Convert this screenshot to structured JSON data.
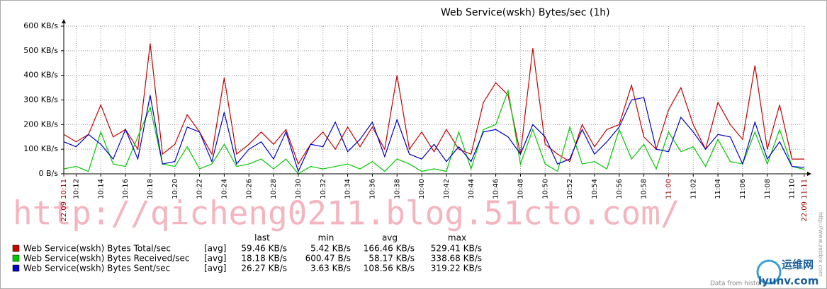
{
  "chart_data": {
    "type": "line",
    "title": "Web Service(wskh) Bytes/sec (1h)",
    "x": [
      611,
      612,
      613,
      614,
      615,
      616,
      617,
      618,
      619,
      620,
      621,
      622,
      623,
      624,
      625,
      626,
      627,
      628,
      629,
      630,
      631,
      632,
      633,
      634,
      635,
      636,
      637,
      638,
      639,
      640,
      641,
      642,
      643,
      644,
      645,
      646,
      647,
      648,
      649,
      650,
      651,
      652,
      653,
      654,
      655,
      656,
      657,
      658,
      659,
      660,
      661,
      662,
      663,
      664,
      665,
      666,
      667,
      668,
      669,
      670,
      671
    ],
    "xlim": [
      611,
      671
    ],
    "xticks": [
      {
        "value": 611,
        "label": "22.09 10:11",
        "color": "#a00000"
      },
      {
        "value": 612,
        "label": "10:12"
      },
      {
        "value": 614,
        "label": "10:14"
      },
      {
        "value": 616,
        "label": "10:16"
      },
      {
        "value": 618,
        "label": "10:18"
      },
      {
        "value": 620,
        "label": "10:20"
      },
      {
        "value": 622,
        "label": "10:22"
      },
      {
        "value": 624,
        "label": "10:24"
      },
      {
        "value": 626,
        "label": "10:26"
      },
      {
        "value": 628,
        "label": "10:28"
      },
      {
        "value": 630,
        "label": "10:30"
      },
      {
        "value": 632,
        "label": "10:32"
      },
      {
        "value": 634,
        "label": "10:34"
      },
      {
        "value": 636,
        "label": "10:36"
      },
      {
        "value": 638,
        "label": "10:38"
      },
      {
        "value": 640,
        "label": "10:40"
      },
      {
        "value": 642,
        "label": "10:42"
      },
      {
        "value": 644,
        "label": "10:44"
      },
      {
        "value": 646,
        "label": "10:46"
      },
      {
        "value": 648,
        "label": "10:48"
      },
      {
        "value": 650,
        "label": "10:50"
      },
      {
        "value": 652,
        "label": "10:52"
      },
      {
        "value": 654,
        "label": "10:54"
      },
      {
        "value": 656,
        "label": "10:56"
      },
      {
        "value": 658,
        "label": "10:58"
      },
      {
        "value": 660,
        "label": "11:00",
        "color": "#a00000"
      },
      {
        "value": 662,
        "label": "11:02"
      },
      {
        "value": 664,
        "label": "11:04"
      },
      {
        "value": 666,
        "label": "11:06"
      },
      {
        "value": 668,
        "label": "11:08"
      },
      {
        "value": 670,
        "label": "11:10"
      },
      {
        "value": 671,
        "label": "22.09 11:11",
        "color": "#a00000"
      }
    ],
    "ylim": [
      0,
      600
    ],
    "yticks": [
      {
        "value": 0,
        "label": "0 B/s"
      },
      {
        "value": 100,
        "label": "100 KB/s"
      },
      {
        "value": 200,
        "label": "200 KB/s"
      },
      {
        "value": 300,
        "label": "300 KB/s"
      },
      {
        "value": 400,
        "label": "400 KB/s"
      },
      {
        "value": 500,
        "label": "500 KB/s"
      },
      {
        "value": 600,
        "label": "600 KB/s"
      }
    ],
    "grid": true,
    "stat_columns": [
      "last",
      "min",
      "avg",
      "max"
    ],
    "series": [
      {
        "name": "Web Service(wskh) Bytes Total/sec",
        "color": "#c80000",
        "values": [
          160,
          130,
          160,
          280,
          150,
          180,
          100,
          529,
          80,
          120,
          240,
          170,
          80,
          390,
          80,
          120,
          170,
          120,
          180,
          40,
          120,
          170,
          100,
          190,
          110,
          190,
          100,
          400,
          100,
          170,
          90,
          180,
          100,
          80,
          290,
          370,
          320,
          80,
          510,
          120,
          80,
          50,
          200,
          110,
          180,
          200,
          360,
          150,
          100,
          260,
          350,
          200,
          100,
          290,
          200,
          140,
          440,
          100,
          280,
          60,
          60
        ],
        "stats": {
          "func": "[avg]",
          "last": "59.46 KB/s",
          "min": "5.42 KB/s",
          "avg": "166.46 KB/s",
          "max": "529.41 KB/s"
        }
      },
      {
        "name": "Web Service(wskh) Bytes Received/sec",
        "color": "#00c800",
        "values": [
          20,
          30,
          10,
          170,
          40,
          30,
          150,
          270,
          40,
          30,
          110,
          20,
          40,
          120,
          30,
          40,
          60,
          20,
          60,
          0,
          30,
          20,
          30,
          40,
          20,
          50,
          10,
          60,
          40,
          10,
          20,
          10,
          170,
          20,
          180,
          200,
          338,
          40,
          180,
          40,
          10,
          190,
          40,
          50,
          20,
          180,
          60,
          120,
          20,
          170,
          90,
          110,
          30,
          140,
          50,
          40,
          170,
          40,
          180,
          30,
          18
        ],
        "stats": {
          "func": "[avg]",
          "last": "18.18 KB/s",
          "min": "600.47 B/s",
          "avg": "58.17 KB/s",
          "max": "338.68 KB/s"
        }
      },
      {
        "name": "Web Service(wskh) Bytes Sent/sec",
        "color": "#0000c8",
        "values": [
          130,
          110,
          160,
          120,
          60,
          180,
          60,
          319,
          40,
          50,
          190,
          170,
          50,
          250,
          40,
          100,
          130,
          60,
          170,
          10,
          120,
          110,
          210,
          90,
          140,
          210,
          70,
          220,
          80,
          60,
          120,
          50,
          110,
          50,
          170,
          180,
          150,
          80,
          200,
          150,
          40,
          60,
          180,
          80,
          130,
          190,
          300,
          310,
          100,
          90,
          230,
          170,
          100,
          160,
          150,
          40,
          210,
          60,
          130,
          30,
          26
        ],
        "stats": {
          "func": "[avg]",
          "last": "26.27 KB/s",
          "min": "3.63 KB/s",
          "avg": "108.56 KB/s",
          "max": "319.22 KB/s"
        }
      }
    ],
    "watermark": "http://qicheng0211.blog.51cto.com/",
    "credit": "http://www.zabbix.com",
    "footer": "Data from history.",
    "logo_cn": "运维网",
    "logo_en": "iyunv.com"
  }
}
